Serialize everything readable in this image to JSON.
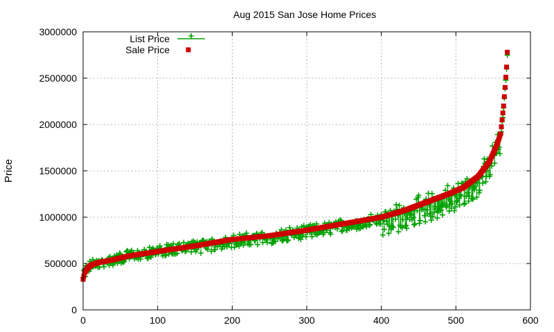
{
  "chart_data": {
    "type": "scatter",
    "title": "Aug 2015 San Jose Home Prices",
    "xlabel": "",
    "ylabel": "Price",
    "xlim": [
      0,
      600
    ],
    "ylim": [
      0,
      3000000
    ],
    "x_ticks": [
      0,
      100,
      200,
      300,
      400,
      500,
      600
    ],
    "x_tick_labels": [
      "0",
      "100",
      "200",
      "300",
      "400",
      "500",
      "600"
    ],
    "y_ticks": [
      0,
      500000,
      1000000,
      1500000,
      2000000,
      2500000,
      3000000
    ],
    "y_tick_labels": [
      "0",
      "500000",
      "1000000",
      "1500000",
      "2000000",
      "2500000",
      "3000000"
    ],
    "grid": true,
    "legend_position": "top-left",
    "n_points": 570,
    "sale_price_anchors": {
      "x": [
        0,
        2,
        5,
        10,
        20,
        40,
        60,
        100,
        150,
        200,
        250,
        300,
        350,
        400,
        430,
        460,
        490,
        510,
        530,
        545,
        555,
        560,
        562,
        564,
        566,
        568,
        569
      ],
      "y": [
        330000,
        400000,
        440000,
        480000,
        510000,
        540000,
        580000,
        630000,
        690000,
        760000,
        800000,
        860000,
        930000,
        1000000,
        1070000,
        1160000,
        1250000,
        1320000,
        1440000,
        1600000,
        1780000,
        1900000,
        2050000,
        2200000,
        2400000,
        2620000,
        2780000
      ]
    },
    "series": [
      {
        "name": "List Price",
        "color": "#00a000",
        "marker": "plus-with-impulse-line"
      },
      {
        "name": "Sale Price",
        "color": "#cc0000",
        "marker": "filled-square"
      }
    ]
  }
}
